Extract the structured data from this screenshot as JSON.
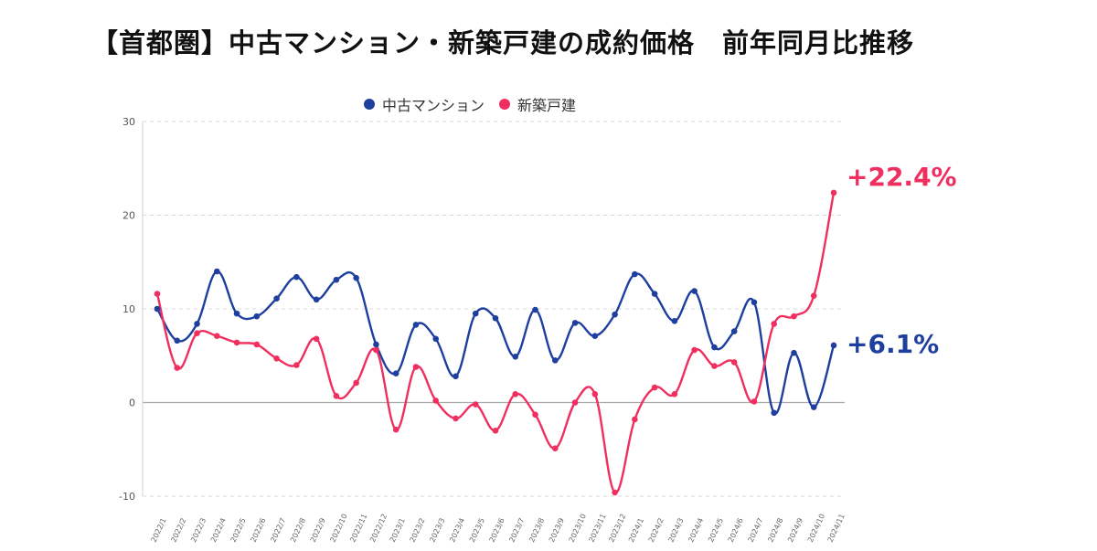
{
  "title": "【首都圏】中古マンション・新築戸建の成約価格　前年同月比推移",
  "legend": {
    "series_1": "中古マンション",
    "series_2": "新築戸建"
  },
  "colors": {
    "series_1": "#1f3f9f",
    "series_2": "#ef2f5f",
    "grid": "#d8d8d8",
    "zero_line": "#aaaaaa"
  },
  "chart_data": {
    "type": "line",
    "title": "【首都圏】中古マンション・新築戸建の成約価格　前年同月比推移",
    "xlabel": "",
    "ylabel": "",
    "ylim": [
      -10,
      30
    ],
    "yticks": [
      30,
      20,
      10,
      0,
      -10
    ],
    "categories": [
      "2022/1",
      "2022/2",
      "2022/3",
      "2022/4",
      "2022/5",
      "2022/6",
      "2022/7",
      "2022/8",
      "2022/9",
      "2022/10",
      "2022/11",
      "2022/12",
      "2023/1",
      "2023/2",
      "2023/3",
      "2023/4",
      "2023/5",
      "2023/6",
      "2023/7",
      "2023/8",
      "2023/9",
      "2023/10",
      "2023/11",
      "2023/12",
      "2024/1",
      "2024/2",
      "2024/3",
      "2024/4",
      "2024/5",
      "2024/6",
      "2024/7",
      "2024/8",
      "2024/9",
      "2024/10",
      "2024/11"
    ],
    "series": [
      {
        "name": "中古マンション",
        "color": "#1f3f9f",
        "values": [
          10.0,
          6.6,
          8.4,
          14.0,
          9.5,
          9.2,
          11.1,
          13.4,
          11.0,
          13.1,
          13.3,
          6.2,
          3.1,
          8.3,
          6.8,
          2.8,
          9.5,
          9.0,
          4.9,
          9.9,
          4.5,
          8.5,
          7.1,
          9.4,
          13.7,
          11.6,
          8.7,
          11.9,
          5.9,
          7.6,
          10.7,
          -1.1,
          5.3,
          -0.5,
          6.1
        ]
      },
      {
        "name": "新築戸建",
        "color": "#ef2f5f",
        "values": [
          11.6,
          3.7,
          7.4,
          7.1,
          6.4,
          6.2,
          4.7,
          4.0,
          6.8,
          0.7,
          2.1,
          5.6,
          -2.9,
          3.8,
          0.2,
          -1.7,
          -0.2,
          -3.0,
          0.9,
          -1.3,
          -4.9,
          0.0,
          0.9,
          -9.6,
          -1.8,
          1.6,
          0.9,
          5.6,
          3.9,
          4.3,
          0.1,
          8.4,
          9.2,
          11.4,
          22.4
        ]
      }
    ],
    "annotations": [
      {
        "series": "新築戸建",
        "text": "+22.4%"
      },
      {
        "series": "中古マンション",
        "text": "+6.1%"
      }
    ]
  }
}
